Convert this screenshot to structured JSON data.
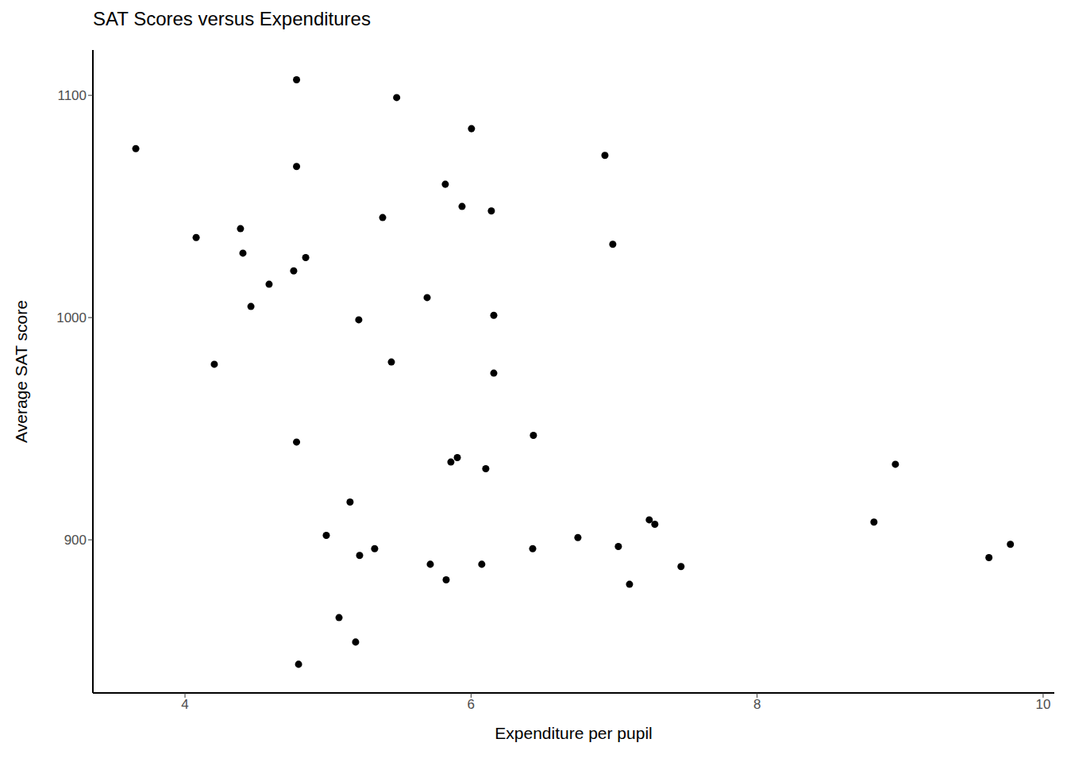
{
  "chart_data": {
    "type": "scatter",
    "title": "SAT Scores versus Expenditures",
    "x_label": "Expenditure per pupil",
    "y_label": "Average SAT score",
    "x": [
      3.656,
      4.78,
      5.48,
      6.003,
      6.936,
      4.78,
      5.82,
      5.937,
      6.142,
      5.382,
      4.388,
      4.078,
      4.405,
      6.991,
      4.844,
      4.76,
      4.588,
      4.461,
      5.693,
      5.215,
      6.159,
      4.205,
      5.443,
      6.159,
      4.78,
      6.436,
      5.904,
      5.859,
      6.103,
      8.967,
      5.154,
      4.988,
      5.221,
      5.326,
      6.747,
      7.246,
      7.285,
      8.817,
      6.431,
      7.03,
      9.771,
      9.621,
      5.715,
      6.075,
      7.468,
      5.826,
      7.108,
      5.077,
      5.193,
      4.794
    ],
    "values": [
      1076,
      1107,
      1099,
      1085,
      1073,
      1068,
      1060,
      1050,
      1048,
      1045,
      1040,
      1036,
      1029,
      1033,
      1027,
      1021,
      1015,
      1005,
      1009,
      999,
      1001,
      979,
      980,
      975,
      944,
      947,
      937,
      935,
      932,
      934,
      917,
      902,
      893,
      896,
      901,
      909,
      907,
      908,
      896,
      897,
      898,
      892,
      889,
      889,
      888,
      882,
      880,
      865,
      854,
      844
    ],
    "xlim": [
      3.356,
      10.078
    ],
    "ylim": [
      831.1,
      1120.4
    ],
    "xticks": [
      4,
      6,
      8,
      10
    ],
    "yticks": [
      900,
      1000,
      1100
    ],
    "color": "#000000",
    "marker": "circle",
    "grid": false
  }
}
